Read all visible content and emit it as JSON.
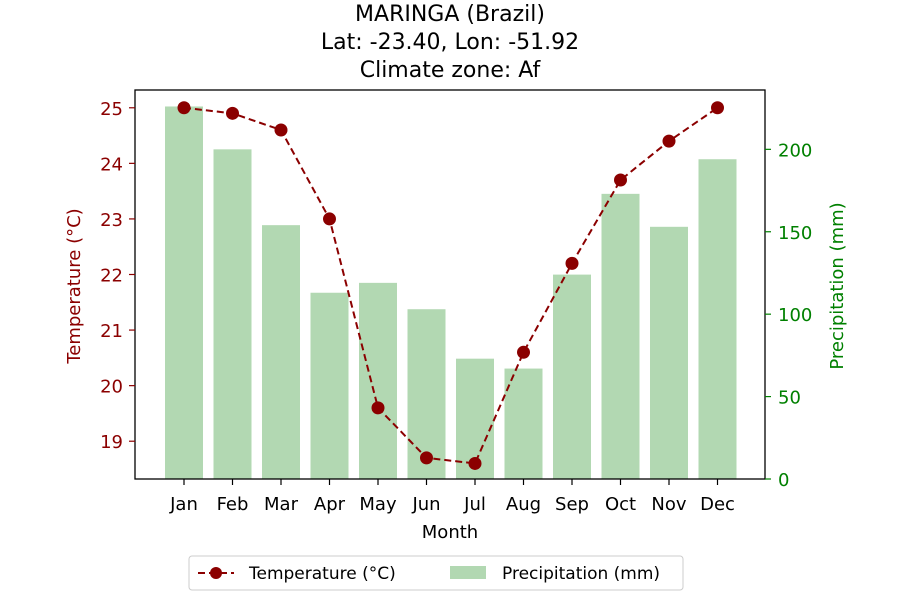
{
  "chart_data": {
    "type": "bar+line",
    "title_lines": [
      "MARINGA (Brazil)",
      "Lat: -23.40, Lon: -51.92",
      "Climate zone: Af"
    ],
    "xlabel": "Month",
    "ylabel_left": "Temperature (°C)",
    "ylabel_right": "Precipitation (mm)",
    "categories": [
      "Jan",
      "Feb",
      "Mar",
      "Apr",
      "May",
      "Jun",
      "Jul",
      "Aug",
      "Sep",
      "Oct",
      "Nov",
      "Dec"
    ],
    "temperature": {
      "name": "Temperature (°C)",
      "values": [
        25.0,
        24.9,
        24.6,
        23.0,
        19.6,
        18.7,
        18.6,
        20.6,
        22.2,
        23.7,
        24.4,
        25.0
      ],
      "ylim": [
        18.32,
        25.32
      ],
      "ticks": [
        19,
        20,
        21,
        22,
        23,
        24,
        25
      ]
    },
    "precipitation": {
      "name": "Precipitation (mm)",
      "values": [
        226,
        200,
        154,
        113,
        119,
        103,
        73,
        67,
        124,
        173,
        153,
        194
      ],
      "ylim": [
        0,
        236
      ],
      "ticks": [
        0,
        50,
        100,
        150,
        200
      ]
    },
    "colors": {
      "temperature": "#8b0000",
      "precipitation_bar": "#b2d8b2",
      "precipitation_axis": "#008000",
      "temperature_axis": "#8b0000"
    },
    "legend_position": "bottom-center",
    "grid": false
  }
}
